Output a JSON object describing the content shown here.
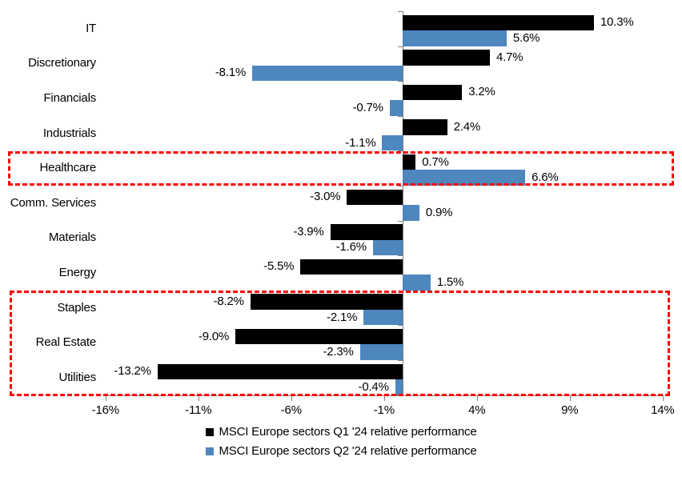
{
  "chart_data": {
    "type": "bar",
    "orientation": "horizontal",
    "title": "",
    "categories": [
      "IT",
      "Discretionary",
      "Financials",
      "Industrials",
      "Healthcare",
      "Comm. Services",
      "Materials",
      "Energy",
      "Staples",
      "Real Estate",
      "Utilities"
    ],
    "series": [
      {
        "name": "MSCI Europe sectors Q1 '24 relative performance",
        "color": "#000000",
        "values": [
          10.3,
          4.7,
          3.2,
          2.4,
          0.7,
          -3.0,
          -3.9,
          -5.5,
          -8.2,
          -9.0,
          -13.2
        ]
      },
      {
        "name": "MSCI Europe sectors Q2 '24 relative performance",
        "color": "#4E86BE",
        "values": [
          5.6,
          -8.1,
          -0.7,
          -1.1,
          6.6,
          0.9,
          -1.6,
          1.5,
          -2.1,
          -2.3,
          -0.4
        ]
      }
    ],
    "value_label_format": "{value}%",
    "x_ticks": [
      "-16%",
      "-11%",
      "-6%",
      "-1%",
      "4%",
      "9%",
      "14%"
    ],
    "x_tick_values": [
      -16,
      -11,
      -6,
      -1,
      4,
      9,
      14
    ],
    "xlim": [
      -16,
      14
    ],
    "grid": false,
    "legend_position": "bottom",
    "axis_color": "#808080",
    "highlight_color": "#FF0000",
    "highlight_boxes": [
      {
        "categories": [
          "Healthcare"
        ]
      },
      {
        "categories": [
          "Staples",
          "Real Estate",
          "Utilities"
        ]
      }
    ]
  }
}
